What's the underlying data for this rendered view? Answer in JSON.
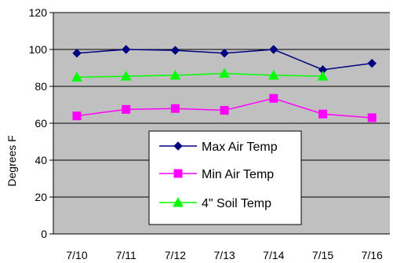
{
  "chart_data": {
    "type": "line",
    "title": "",
    "xlabel": "",
    "ylabel": "Degrees F",
    "ylim": [
      0,
      120
    ],
    "yticks": [
      0,
      20,
      40,
      60,
      80,
      100,
      120
    ],
    "grid": "horizontal",
    "legend_position": "lower-center",
    "plot_background": "#c0c0c0",
    "x": [
      "7/10",
      "7/11",
      "7/12",
      "7/13",
      "7/14",
      "7/15",
      "7/16"
    ],
    "series": [
      {
        "name": "Max Air Temp",
        "values": [
          98,
          100,
          99.5,
          98,
          100,
          89,
          92.5
        ],
        "color": "#000080",
        "marker": "diamond"
      },
      {
        "name": "Min Air Temp",
        "values": [
          64,
          67.5,
          68,
          67,
          73.5,
          65,
          63
        ],
        "color": "#ff00ff",
        "marker": "square"
      },
      {
        "name": "4\" Soil Temp",
        "values": [
          85,
          85.5,
          86,
          87,
          86,
          85.5,
          null
        ],
        "color": "#00ff00",
        "marker": "triangle"
      }
    ]
  }
}
